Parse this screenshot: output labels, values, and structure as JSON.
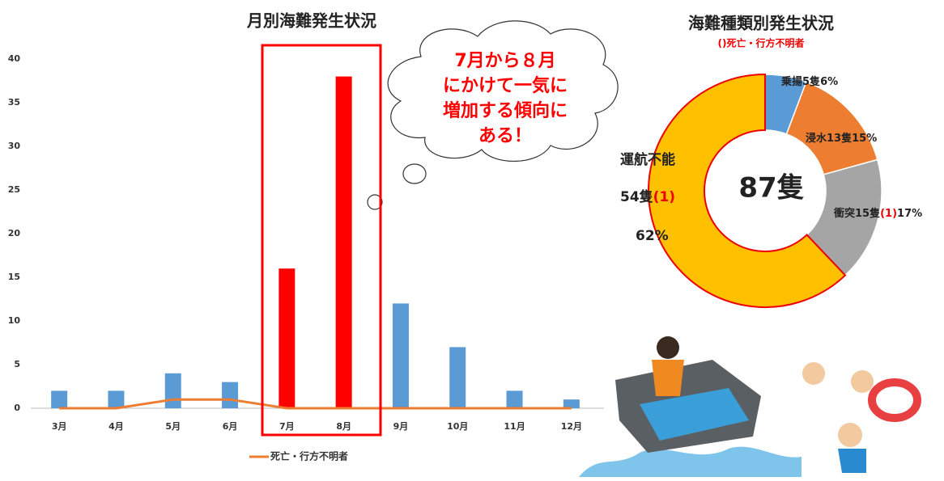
{
  "chart_data": [
    {
      "type": "bar",
      "title": "月別海難発生状況",
      "categories": [
        "3月",
        "4月",
        "5月",
        "6月",
        "7月",
        "8月",
        "9月",
        "10月",
        "11月",
        "12月"
      ],
      "values": [
        2,
        2,
        4,
        3,
        16,
        38,
        12,
        7,
        2,
        1
      ],
      "colors": [
        "#5b9bd5",
        "#5b9bd5",
        "#5b9bd5",
        "#5b9bd5",
        "#ff0000",
        "#ff0000",
        "#5b9bd5",
        "#5b9bd5",
        "#5b9bd5",
        "#5b9bd5"
      ],
      "line_series": {
        "name": "死亡・行方不明者",
        "color": "#ed7d31",
        "values": [
          0,
          0,
          1,
          1,
          0,
          0,
          0,
          0,
          0,
          0
        ]
      },
      "ylim": [
        0,
        40
      ],
      "yticks": [
        0,
        5,
        10,
        15,
        20,
        25,
        30,
        35,
        40
      ],
      "grid": false,
      "annotation_lines": [
        "7月から８月",
        "にかけて一気に",
        "増加する傾向に",
        "ある！"
      ],
      "highlight_color": "#ff0000"
    },
    {
      "type": "donut",
      "title": "海難種類別発生状況",
      "subtitle": "()死亡・行方不明者",
      "categories": [
        "乗揚",
        "浸水",
        "衝突",
        "運航不能"
      ],
      "values": [
        5,
        13,
        15,
        54
      ],
      "value_labels": [
        "5隻",
        "13隻",
        "15隻",
        "54隻"
      ],
      "death_labels": [
        null,
        null,
        "(1)",
        "(1)"
      ],
      "percent_labels": [
        "6%",
        "15%",
        "17%",
        "62%"
      ],
      "colors": [
        "#5b9bd5",
        "#ed7d31",
        "#a5a5a5",
        "#ffc000"
      ],
      "total": 87,
      "total_label": "87隻"
    }
  ]
}
